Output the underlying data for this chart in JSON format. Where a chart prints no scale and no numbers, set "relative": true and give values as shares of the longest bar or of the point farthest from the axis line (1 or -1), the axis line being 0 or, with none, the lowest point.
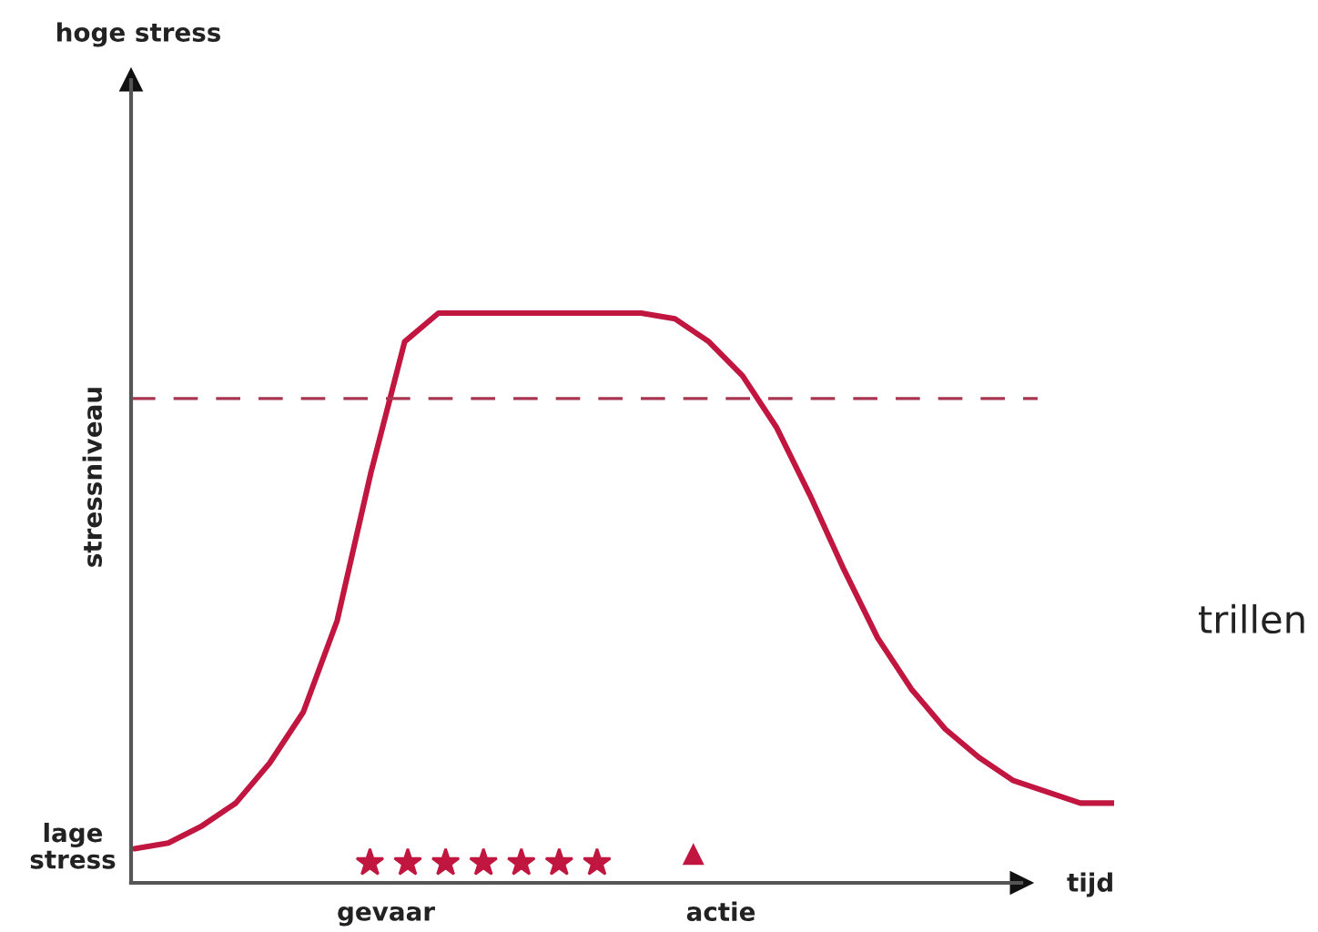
{
  "chart_data": {
    "type": "line",
    "relative": true,
    "legend": false,
    "marker": "none",
    "line_style": "solid",
    "ylabel": "stressniveau",
    "xlabel": "tijd",
    "annotations": [
      "hoge stress",
      "lage stress",
      "gevaar",
      "actie",
      "trillen"
    ],
    "categories": [
      null,
      null,
      null,
      null,
      null,
      null,
      null,
      null,
      null,
      null,
      null,
      null,
      null,
      null,
      null,
      null,
      null,
      null,
      null,
      null,
      null,
      null,
      null,
      null,
      null,
      null,
      null,
      null,
      null,
      null
    ],
    "series": [
      {
        "color": "#c0163f",
        "values": [
          0.06,
          0.07,
          0.1,
          0.14,
          0.21,
          0.3,
          0.46,
          0.72,
          0.95,
          1.0,
          1.0,
          1.0,
          1.0,
          1.0,
          1.0,
          1.0,
          0.99,
          0.95,
          0.89,
          0.8,
          0.68,
          0.55,
          0.43,
          0.34,
          0.27,
          0.22,
          0.18,
          0.16,
          0.14,
          0.14
        ]
      }
    ],
    "ref_lines": [
      {
        "axis": "y",
        "value": 0.85,
        "color": "#a8344f",
        "line_style": "dashed"
      }
    ]
  }
}
